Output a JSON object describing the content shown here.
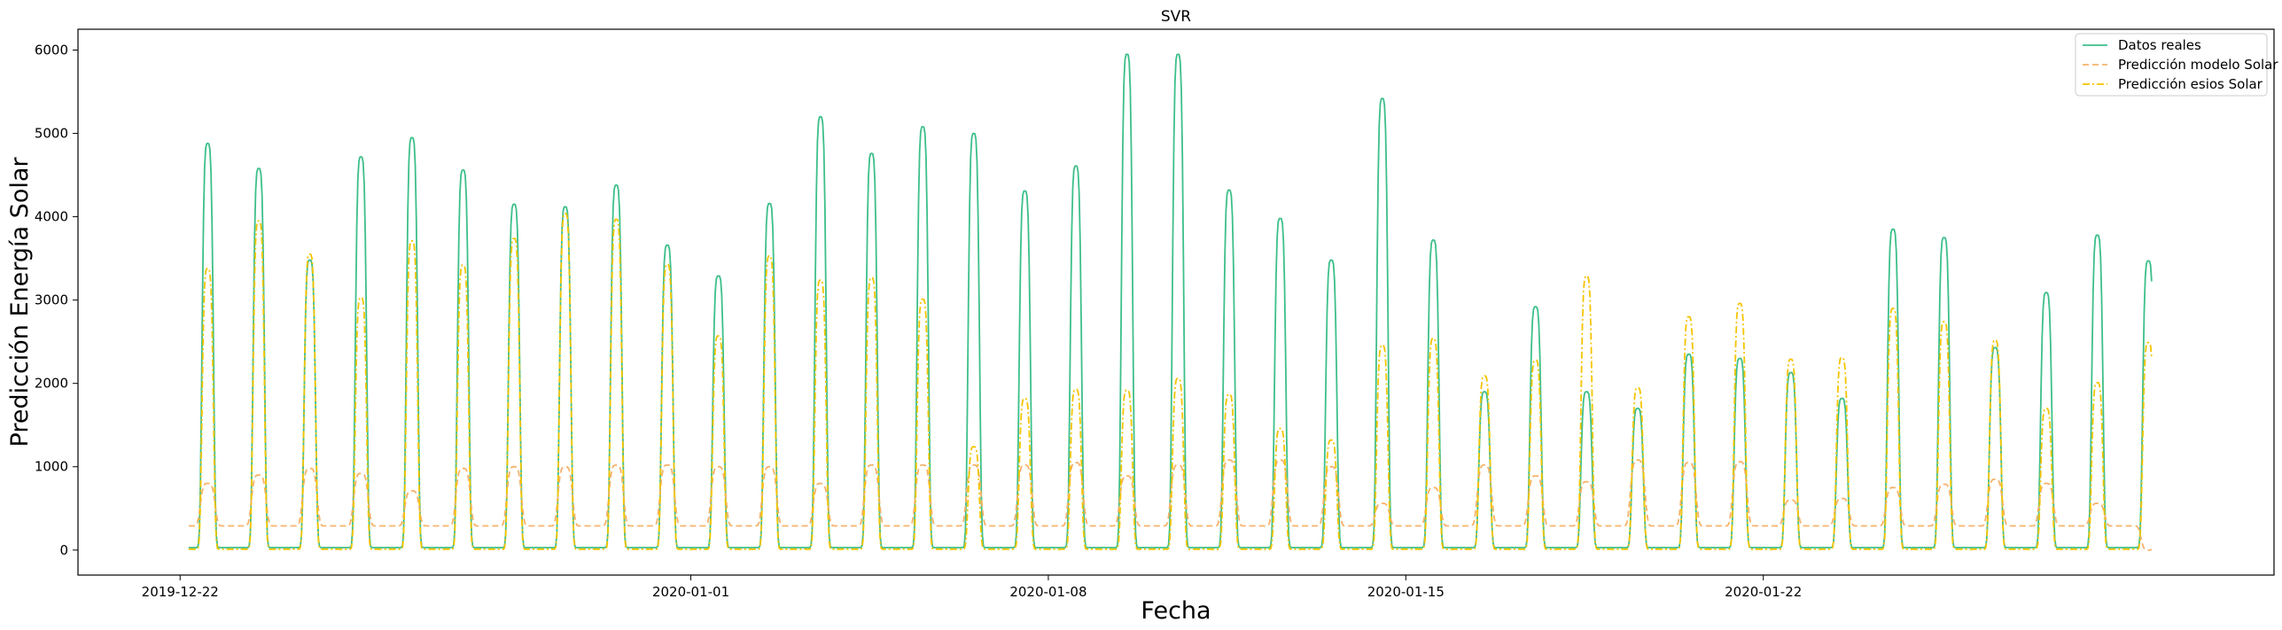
{
  "chart_data": {
    "type": "line",
    "title": "SVR",
    "xlabel": "Fecha",
    "ylabel": "Predicción Energía Solar",
    "x_range": [
      "2019-12-20",
      "2020-02-01"
    ],
    "ylim": [
      -300,
      6250
    ],
    "x_ticks": [
      "2019-12-22",
      "2020-01-01",
      "2020-01-08",
      "2020-01-15",
      "2020-01-22"
    ],
    "y_ticks": [
      0,
      1000,
      2000,
      3000,
      4000,
      5000,
      6000
    ],
    "grid": false,
    "legend_position": "top-right",
    "days": [
      "2019-12-22",
      "2019-12-23",
      "2019-12-24",
      "2019-12-25",
      "2019-12-26",
      "2019-12-27",
      "2019-12-28",
      "2019-12-29",
      "2019-12-30",
      "2019-12-31",
      "2020-01-01",
      "2020-01-02",
      "2020-01-03",
      "2020-01-04",
      "2020-01-05",
      "2020-01-06",
      "2020-01-07",
      "2020-01-08",
      "2020-01-09",
      "2020-01-10",
      "2020-01-11",
      "2020-01-12",
      "2020-01-13",
      "2020-01-14",
      "2020-01-15",
      "2020-01-16",
      "2020-01-17",
      "2020-01-18",
      "2020-01-19",
      "2020-01-20",
      "2020-01-21",
      "2020-01-22",
      "2020-01-23",
      "2020-01-24",
      "2020-01-25",
      "2020-01-26",
      "2020-01-27",
      "2020-01-28",
      "2020-01-29",
      "2020-01-30"
    ],
    "series": [
      {
        "name": "Datos reales",
        "color": "#3dbf8a",
        "style": "solid",
        "daily_peak": [
          4880,
          4580,
          3480,
          4720,
          4950,
          4560,
          4150,
          4120,
          4380,
          3660,
          3290,
          4160,
          5200,
          4760,
          5080,
          5000,
          4310,
          4610,
          5950,
          5950,
          4320,
          3980,
          3480,
          5420,
          3720,
          1900,
          2920,
          1900,
          1700,
          2350,
          2300,
          2130,
          1820,
          3850,
          3750,
          2430,
          3090,
          3780,
          3470,
          0
        ],
        "baseline": 30
      },
      {
        "name": "Predicción modelo Solar",
        "color": "#f6b26b",
        "style": "dashed",
        "daily_peak": [
          800,
          900,
          980,
          920,
          710,
          980,
          1000,
          1000,
          1020,
          1020,
          1000,
          1000,
          800,
          1020,
          1020,
          1020,
          1020,
          1050,
          890,
          1020,
          1080,
          1080,
          1000,
          560,
          750,
          1020,
          890,
          820,
          1080,
          1050,
          1060,
          600,
          620,
          750,
          790,
          850,
          800,
          560,
          0,
          0
        ],
        "baseline": 290
      },
      {
        "name": "Predicción esios Solar",
        "color": "#f5c400",
        "style": "dashdot",
        "daily_peak": [
          3380,
          3950,
          3550,
          3030,
          3710,
          3420,
          3740,
          4040,
          3970,
          3430,
          2570,
          3530,
          3240,
          3270,
          3010,
          1240,
          1820,
          1930,
          1920,
          2060,
          1870,
          1460,
          1320,
          2460,
          2540,
          2090,
          2280,
          3290,
          1950,
          2800,
          2960,
          2290,
          2310,
          2900,
          2740,
          2520,
          1700,
          2010,
          2490,
          0
        ],
        "baseline": 10
      }
    ]
  }
}
